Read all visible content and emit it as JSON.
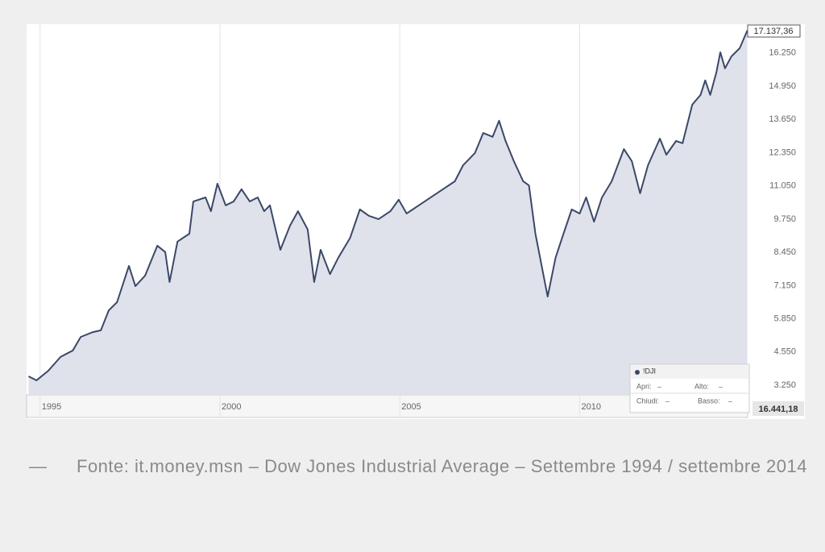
{
  "chart_data": {
    "type": "line",
    "x": [
      1994.68,
      1994.9,
      1995.23,
      1995.57,
      1995.91,
      1996.13,
      1996.47,
      1996.69,
      1996.91,
      1997.14,
      1997.47,
      1997.65,
      1997.92,
      1998.26,
      1998.48,
      1998.6,
      1998.82,
      1999.15,
      1999.26,
      1999.6,
      1999.75,
      1999.93,
      2000.16,
      2000.38,
      2000.6,
      2000.83,
      2001.05,
      2001.23,
      2001.39,
      2001.68,
      2001.95,
      2002.17,
      2002.44,
      2002.62,
      2002.8,
      2003.06,
      2003.29,
      2003.62,
      2003.89,
      2004.14,
      2004.41,
      2004.74,
      2004.97,
      2005.19,
      2005.53,
      2005.86,
      2006.2,
      2006.53,
      2006.76,
      2007.09,
      2007.32,
      2007.58,
      2007.76,
      2007.94,
      2008.17,
      2008.43,
      2008.59,
      2008.77,
      2009.11,
      2009.33,
      2009.55,
      2009.78,
      2010.0,
      2010.18,
      2010.4,
      2010.62,
      2010.89,
      2011.23,
      2011.45,
      2011.68,
      2011.9,
      2012.23,
      2012.41,
      2012.68,
      2012.86,
      2013.13,
      2013.36,
      2013.49,
      2013.63,
      2013.8,
      2013.91,
      2014.04,
      2014.22,
      2014.45,
      2014.66
    ],
    "values": [
      3600,
      3440,
      3820,
      4360,
      4610,
      5140,
      5330,
      5400,
      6180,
      6500,
      7920,
      7130,
      7540,
      8710,
      8460,
      7290,
      8870,
      9180,
      10440,
      10600,
      10060,
      11140,
      10290,
      10440,
      10920,
      10440,
      10600,
      10060,
      10290,
      8550,
      9500,
      10060,
      9340,
      7290,
      8550,
      7600,
      8240,
      9020,
      10130,
      9880,
      9750,
      10060,
      10510,
      9970,
      10290,
      10600,
      10920,
      11230,
      11860,
      12340,
      13120,
      12970,
      13600,
      12810,
      12020,
      11230,
      11070,
      9180,
      6720,
      8240,
      9180,
      10130,
      9970,
      10600,
      9650,
      10600,
      11230,
      12490,
      12020,
      10760,
      11860,
      12900,
      12270,
      12810,
      12720,
      14230,
      14610,
      15180,
      14610,
      15490,
      16280,
      15650,
      16120,
      16440,
      17130
    ],
    "color": "#3b4868",
    "fill": "#dfe2ea",
    "xlim": [
      1994.67,
      2014.67
    ],
    "xticks": [
      1995,
      2000,
      2005,
      2010
    ],
    "ylim": [
      3000,
      17000
    ],
    "yticks": [
      {
        "value": 3250,
        "label": "3.250"
      },
      {
        "value": 4550,
        "label": "4.550"
      },
      {
        "value": 5850,
        "label": "5.850"
      },
      {
        "value": 7150,
        "label": "7.150"
      },
      {
        "value": 8450,
        "label": "8.450"
      },
      {
        "value": 9750,
        "label": "9.750"
      },
      {
        "value": 11050,
        "label": "11.050"
      },
      {
        "value": 12350,
        "label": "12.350"
      },
      {
        "value": 13650,
        "label": "13.650"
      },
      {
        "value": 14950,
        "label": "14.950"
      },
      {
        "value": 16250,
        "label": "16.250"
      }
    ],
    "grid": true,
    "last_label": "17.137,36",
    "bottom_label": "16.441,18",
    "legend": {
      "symbol": "!DJI",
      "fields": [
        {
          "label": "Apri:",
          "value": "–"
        },
        {
          "label": "Alto:",
          "value": "–"
        },
        {
          "label": "Chiudi:",
          "value": "–"
        },
        {
          "label": "Basso:",
          "value": "–"
        }
      ]
    }
  },
  "caption": {
    "dash": "—",
    "text": "Fonte: it.money.msn – Dow Jones Industrial Average – Settembre 1994 / settembre 2014"
  }
}
